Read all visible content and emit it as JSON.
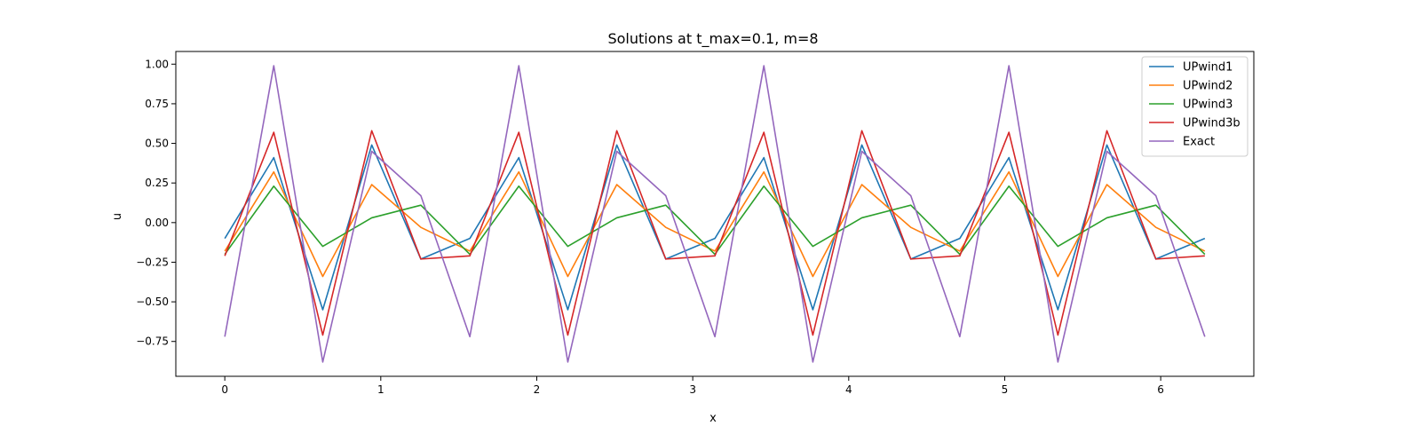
{
  "chart_data": {
    "type": "line",
    "title": "Solutions at t_max=0.1, m=8",
    "xlabel": "x",
    "ylabel": "u",
    "xlim": [
      -0.314,
      6.597
    ],
    "ylim": [
      -0.97,
      1.08
    ],
    "xticks": [
      0,
      1,
      2,
      3,
      4,
      5,
      6
    ],
    "yticks": [
      -0.75,
      -0.5,
      -0.25,
      0.0,
      0.25,
      0.5,
      0.75,
      1.0
    ],
    "ytick_labels": [
      "−0.75",
      "−0.50",
      "−0.25",
      "0.00",
      "0.25",
      "0.50",
      "0.75",
      "1.00"
    ],
    "grid": false,
    "legend_position": "top-right",
    "x": [
      0,
      0.314,
      0.628,
      0.942,
      1.257,
      1.571,
      1.885,
      2.199,
      2.513,
      2.827,
      3.142,
      3.456,
      3.77,
      4.084,
      4.398,
      4.712,
      5.027,
      5.341,
      5.655,
      5.969,
      6.283
    ],
    "series": [
      {
        "name": "UPwind1",
        "color": "#1f77b4",
        "values": [
          -0.1,
          0.41,
          -0.55,
          0.49,
          -0.23,
          -0.1,
          0.41,
          -0.55,
          0.49,
          -0.23,
          -0.1,
          0.41,
          -0.55,
          0.49,
          -0.23,
          -0.1,
          0.41,
          -0.55,
          0.49,
          -0.23,
          -0.1
        ]
      },
      {
        "name": "UPwind2",
        "color": "#ff7f0e",
        "values": [
          -0.18,
          0.32,
          -0.34,
          0.24,
          -0.03,
          -0.18,
          0.32,
          -0.34,
          0.24,
          -0.03,
          -0.18,
          0.32,
          -0.34,
          0.24,
          -0.03,
          -0.18,
          0.32,
          -0.34,
          0.24,
          -0.03,
          -0.18
        ]
      },
      {
        "name": "UPwind3",
        "color": "#2ca02c",
        "values": [
          -0.2,
          0.23,
          -0.15,
          0.03,
          0.11,
          -0.2,
          0.23,
          -0.15,
          0.03,
          0.11,
          -0.2,
          0.23,
          -0.15,
          0.03,
          0.11,
          -0.2,
          0.23,
          -0.15,
          0.03,
          0.11,
          -0.2
        ]
      },
      {
        "name": "UPwind3b",
        "color": "#d62728",
        "values": [
          -0.21,
          0.57,
          -0.71,
          0.58,
          -0.23,
          -0.21,
          0.57,
          -0.71,
          0.58,
          -0.23,
          -0.21,
          0.57,
          -0.71,
          0.58,
          -0.23,
          -0.21,
          0.57,
          -0.71,
          0.58,
          -0.23,
          -0.21
        ]
      },
      {
        "name": "Exact",
        "color": "#9467bd",
        "values": [
          -0.72,
          0.99,
          -0.88,
          0.45,
          0.17,
          -0.72,
          0.99,
          -0.88,
          0.45,
          0.17,
          -0.72,
          0.99,
          -0.88,
          0.45,
          0.17,
          -0.72,
          0.99,
          -0.88,
          0.45,
          0.17,
          -0.72
        ]
      }
    ]
  }
}
